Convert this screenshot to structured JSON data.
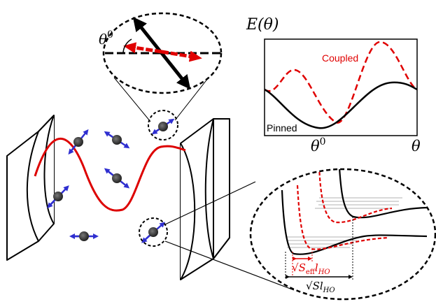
{
  "energy_plot": {
    "ylabel": "E(θ)",
    "xtick_label": "θ",
    "xtick_superscript": "0",
    "xlabel": "θ",
    "curves": [
      {
        "name": "Coupled",
        "color": "#e00000",
        "style": "dashed"
      },
      {
        "name": "Pinned",
        "color": "#000000",
        "style": "solid"
      }
    ]
  },
  "top_inset": {
    "angle_label": "θ",
    "angle_superscript": "0"
  },
  "bottom_inset": {
    "red_width_label": {
      "prefix": "√",
      "S": "S",
      "sub": "eff",
      "l": "l",
      "lsub": "HO"
    },
    "black_width_label": {
      "prefix": "√",
      "S": "S",
      "l": "l",
      "lsub": "HO"
    }
  },
  "colors": {
    "cavity_mode": "#dd0000",
    "spin_arrow": "#2f2fd0",
    "atom": "#333333",
    "coupled": "#e00000",
    "pinned": "#000000"
  }
}
